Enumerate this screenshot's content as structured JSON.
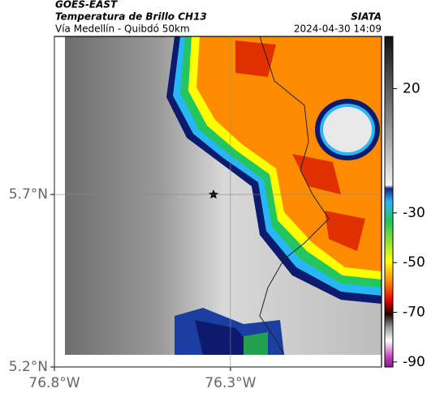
{
  "header": {
    "satellite": "GOES-EAST",
    "product": "Temperatura de Brillo CH13",
    "region": "Vía Medellín - Quibdó 50km",
    "source": "SIATA",
    "datetime": "2024-04-30 14:09"
  },
  "map": {
    "xlim": [
      -76.8,
      -75.871
    ],
    "ylim": [
      5.2,
      6.158
    ],
    "xticks": [
      {
        "value": -76.8,
        "label": "76.8°W"
      },
      {
        "value": -76.3,
        "label": "76.3°W"
      }
    ],
    "yticks": [
      {
        "value": 5.2,
        "label": "5.2°N"
      },
      {
        "value": 5.7,
        "label": "5.7°N"
      }
    ],
    "grid": true
  },
  "colorbar": {
    "lim": [
      -92,
      41
    ],
    "ticks": [
      20,
      -30,
      -50,
      -70,
      -90
    ]
  }
}
